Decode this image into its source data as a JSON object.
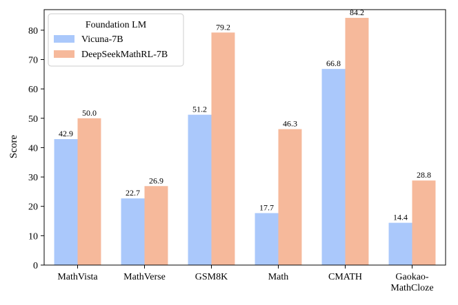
{
  "chart_data": {
    "type": "bar",
    "title": "",
    "xlabel": "",
    "ylabel": "Score",
    "ylim": [
      0,
      87
    ],
    "yticks": [
      0,
      10,
      20,
      30,
      40,
      50,
      60,
      70,
      80
    ],
    "categories": [
      [
        "MathVista"
      ],
      [
        "MathVerse"
      ],
      [
        "GSM8K"
      ],
      [
        "Math"
      ],
      [
        "CMATH"
      ],
      [
        "Gaokao-",
        "MathCloze"
      ]
    ],
    "series": [
      {
        "name": "Vicuna-7B",
        "color": "#aac8fb",
        "values": [
          42.9,
          22.7,
          51.2,
          17.7,
          66.8,
          14.4
        ]
      },
      {
        "name": "DeepSeekMathRL-7B",
        "color": "#f6b99b",
        "values": [
          50.0,
          26.9,
          79.2,
          46.3,
          84.2,
          28.8
        ]
      }
    ],
    "legend": {
      "title": "Foundation LM",
      "position": "top-left"
    }
  }
}
